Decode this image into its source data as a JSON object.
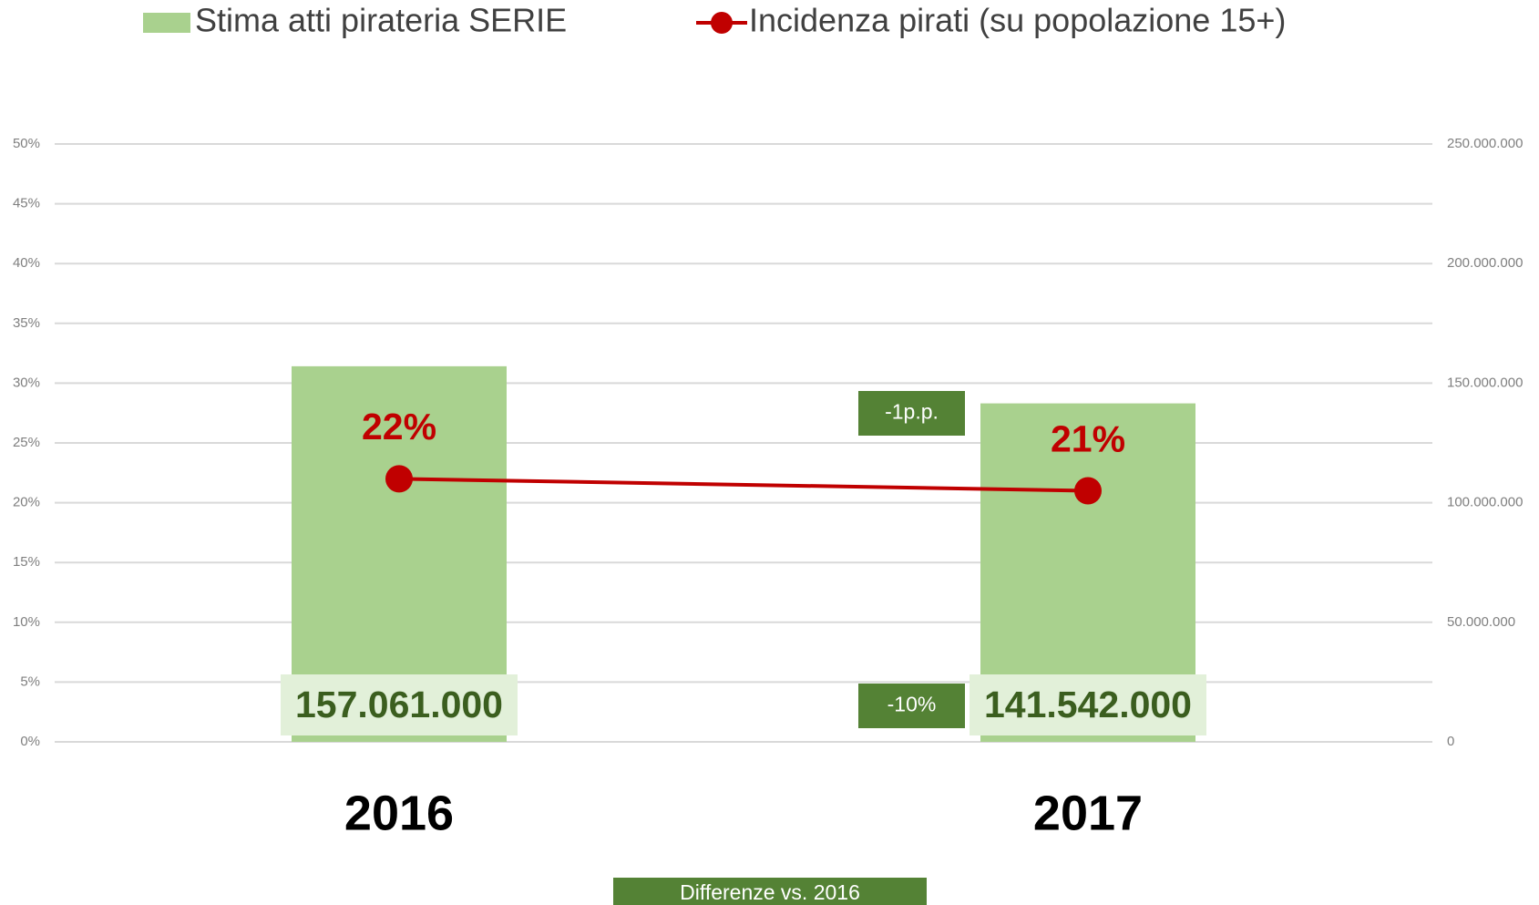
{
  "chart_data": {
    "type": "combo",
    "categories": [
      "2016",
      "2017"
    ],
    "series": [
      {
        "name": "Stima atti pirateria SERIE",
        "type": "bar",
        "axis": "y2",
        "color": "#a9d18e",
        "values": [
          157061000,
          141542000
        ],
        "value_labels": [
          "157.061.000",
          "141.542.000"
        ]
      },
      {
        "name": "Incidenza pirati (su popolazione 15+)",
        "type": "line",
        "color": "#c00000",
        "values": [
          22,
          21
        ],
        "value_labels": [
          "22%",
          "21%"
        ]
      }
    ],
    "ylim": [
      0,
      50
    ],
    "yticks": [
      {
        "value": 0,
        "label": "0%"
      },
      {
        "value": 5,
        "label": "5%"
      },
      {
        "value": 10,
        "label": "10%"
      },
      {
        "value": 15,
        "label": "15%"
      },
      {
        "value": 20,
        "label": "20%"
      },
      {
        "value": 25,
        "label": "25%"
      },
      {
        "value": 30,
        "label": "30%"
      },
      {
        "value": 35,
        "label": "35%"
      },
      {
        "value": 40,
        "label": "40%"
      },
      {
        "value": 45,
        "label": "45%"
      },
      {
        "value": 50,
        "label": "50%"
      }
    ],
    "y2lim": [
      0,
      250000000
    ],
    "y2ticks": [
      0,
      {
        "value": 50000000,
        "label": "50.000.000"
      },
      {
        "value": 100000000,
        "label": "100.000.000"
      },
      {
        "value": 150000000,
        "label": "150.000.000"
      },
      {
        "value": 200000000,
        "label": "200.000.000"
      },
      {
        "value": 250000000,
        "label": "250.000.000"
      }
    ],
    "grid": true,
    "legend": "top",
    "annotations": [
      "-1p.p.",
      "-10%",
      "Differenze vs. 2016"
    ]
  }
}
